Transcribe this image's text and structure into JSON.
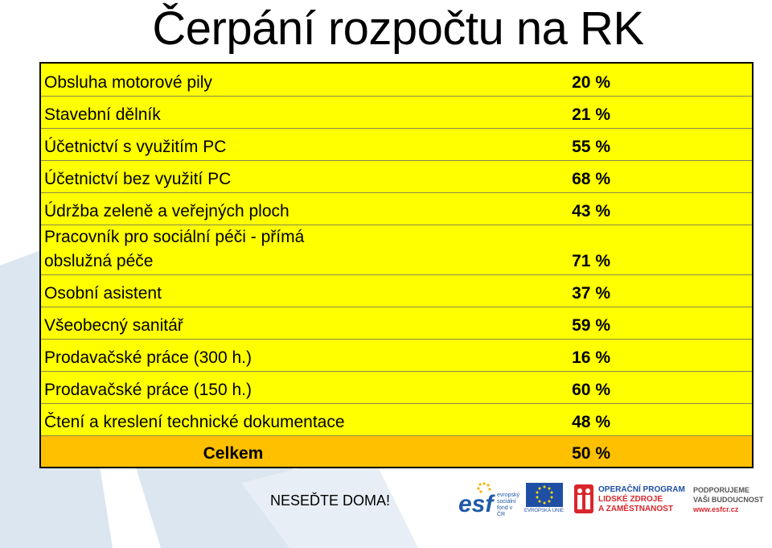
{
  "title": "Čerpání rozpočtu na RK",
  "rows": [
    {
      "name": "Obsluha motorové pily",
      "value": "20 %"
    },
    {
      "name": "Stavební dělník",
      "value": "21 %"
    },
    {
      "name": "Účetnictví s využitím PC",
      "value": "55 %"
    },
    {
      "name": "Účetnictví bez využití PC",
      "value": "68 %"
    },
    {
      "name": "Údržba zeleně a veřejných ploch",
      "value": "43 %"
    },
    {
      "name_line1": "Pracovník pro sociální péči - přímá",
      "name_line2": "obslužná péče",
      "value": "71 %"
    },
    {
      "name": "Osobní asistent",
      "value": "37 %"
    },
    {
      "name": "Všeobecný sanitář",
      "value": "59 %"
    },
    {
      "name": "Prodavačské práce (300 h.)",
      "value": "16 %"
    },
    {
      "name": "Prodavačské práce (150 h.)",
      "value": "60 %"
    },
    {
      "name": "Čtení a kreslení technické dokumentace",
      "value": "48 %"
    }
  ],
  "total": {
    "name": "Celkem",
    "value": "50 %"
  },
  "footer": {
    "slogan": "NESEĎTE DOMA!",
    "esf_text": "esf",
    "esf_sub1": "evropský",
    "esf_sub2": "sociální",
    "esf_sub3": "fond v ČR",
    "eu_label": "EVROPSKÁ UNIE",
    "op_line1": "OPERAČNÍ PROGRAM",
    "op_line2": "LIDSKÉ ZDROJE",
    "op_line3": "A ZAMĚSTNANOST",
    "support_line1": "PODPORUJEME",
    "support_line2": "VAŠI BUDOUCNOST",
    "support_url": "www.esfcr.cz"
  }
}
